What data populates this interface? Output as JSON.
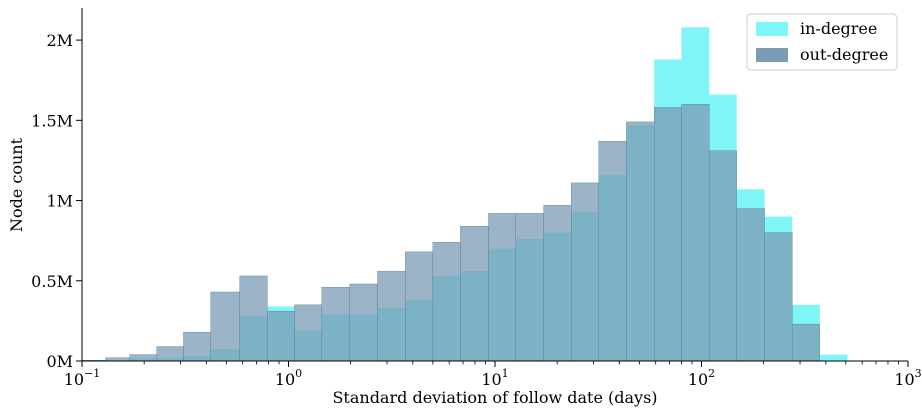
{
  "chart_data": {
    "type": "bar",
    "xscale": "log",
    "xlim": [
      0.1,
      1000
    ],
    "ylim": [
      0,
      2200000
    ],
    "xlabel": "Standard deviation of follow date (days)",
    "ylabel": "Node count",
    "title": "",
    "grid": false,
    "legend_position": "top-right",
    "x_ticks": [
      {
        "base": "10",
        "exp": "−1",
        "value": 0.1
      },
      {
        "base": "10",
        "exp": "0",
        "value": 1
      },
      {
        "base": "10",
        "exp": "1",
        "value": 10
      },
      {
        "base": "10",
        "exp": "2",
        "value": 100
      },
      {
        "base": "10",
        "exp": "3",
        "value": 1000
      }
    ],
    "y_ticks": [
      {
        "label": "0M",
        "value": 0
      },
      {
        "label": "0.5M",
        "value": 500000
      },
      {
        "label": "1M",
        "value": 1000000
      },
      {
        "label": "1.5M",
        "value": 1500000
      },
      {
        "label": "2M",
        "value": 2000000
      }
    ],
    "bin_edges": [
      0.1,
      0.13,
      0.17,
      0.23,
      0.31,
      0.42,
      0.58,
      0.79,
      1.07,
      1.45,
      1.98,
      2.7,
      3.68,
      5.0,
      6.8,
      9.3,
      12.6,
      17.2,
      23.4,
      31.8,
      43.3,
      59,
      80,
      109,
      148,
      202,
      275,
      374,
      509
    ],
    "series": [
      {
        "name": "in-degree",
        "color": "#7ff5f8",
        "values": [
          0,
          5000,
          15000,
          20000,
          30000,
          75000,
          280000,
          340000,
          190000,
          290000,
          290000,
          330000,
          380000,
          530000,
          560000,
          700000,
          760000,
          800000,
          930000,
          1160000,
          1470000,
          1880000,
          2080000,
          1660000,
          1070000,
          900000,
          350000,
          40000
        ]
      },
      {
        "name": "out-degree",
        "color": "#7a9bb4",
        "values": [
          5000,
          20000,
          40000,
          90000,
          180000,
          430000,
          530000,
          310000,
          350000,
          460000,
          480000,
          560000,
          680000,
          740000,
          840000,
          920000,
          920000,
          970000,
          1110000,
          1370000,
          1490000,
          1580000,
          1600000,
          1310000,
          950000,
          800000,
          230000,
          0
        ]
      }
    ]
  }
}
